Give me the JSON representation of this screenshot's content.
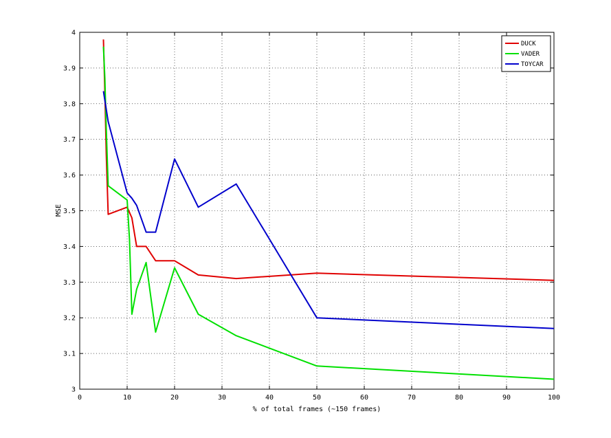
{
  "chart_data": {
    "type": "line",
    "xlabel": "% of total frames (~150 frames)",
    "ylabel": "MSE",
    "xlim": [
      0,
      100
    ],
    "ylim": [
      3,
      4
    ],
    "xticks": [
      0,
      10,
      20,
      30,
      40,
      50,
      60,
      70,
      80,
      90,
      100
    ],
    "yticks": [
      3,
      3.1,
      3.2,
      3.3,
      3.4,
      3.5,
      3.6,
      3.7,
      3.8,
      3.9,
      4
    ],
    "grid": true,
    "legend_position": "top-right",
    "series": [
      {
        "name": "DUCK",
        "color": "#e00000",
        "x": [
          5,
          5.3,
          5.6,
          6,
          10,
          11,
          12,
          14,
          16,
          20,
          25,
          33,
          50,
          100
        ],
        "y": [
          3.98,
          3.83,
          3.66,
          3.49,
          3.51,
          3.48,
          3.4,
          3.4,
          3.36,
          3.36,
          3.32,
          3.31,
          3.325,
          3.305
        ]
      },
      {
        "name": "VADER",
        "color": "#00e000",
        "x": [
          5,
          5.3,
          5.6,
          6,
          10,
          10.5,
          11,
          12,
          14,
          16,
          20,
          25,
          33,
          50,
          100
        ],
        "y": [
          3.96,
          3.87,
          3.73,
          3.57,
          3.53,
          3.42,
          3.21,
          3.28,
          3.355,
          3.16,
          3.34,
          3.21,
          3.15,
          3.065,
          3.028
        ]
      },
      {
        "name": "TOYCAR",
        "color": "#0000cc",
        "x": [
          5,
          6,
          10,
          11,
          12,
          14,
          16,
          20,
          25,
          33,
          50,
          100
        ],
        "y": [
          3.835,
          3.75,
          3.55,
          3.535,
          3.515,
          3.44,
          3.44,
          3.645,
          3.51,
          3.575,
          3.2,
          3.17
        ]
      }
    ]
  }
}
